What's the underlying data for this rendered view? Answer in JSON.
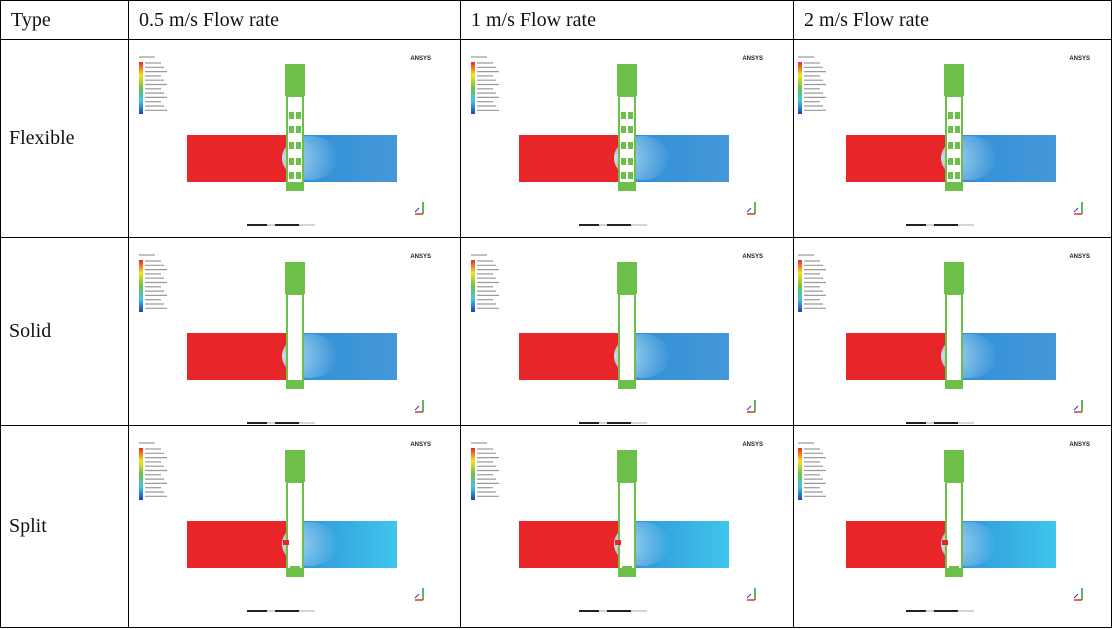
{
  "table": {
    "header": [
      "Type",
      "0.5 m/s Flow rate",
      "1 m/s Flow rate",
      "2 m/s Flow rate"
    ],
    "rows": [
      "Flexible",
      "Solid",
      "Split"
    ]
  },
  "image_logo": "ANSYS"
}
